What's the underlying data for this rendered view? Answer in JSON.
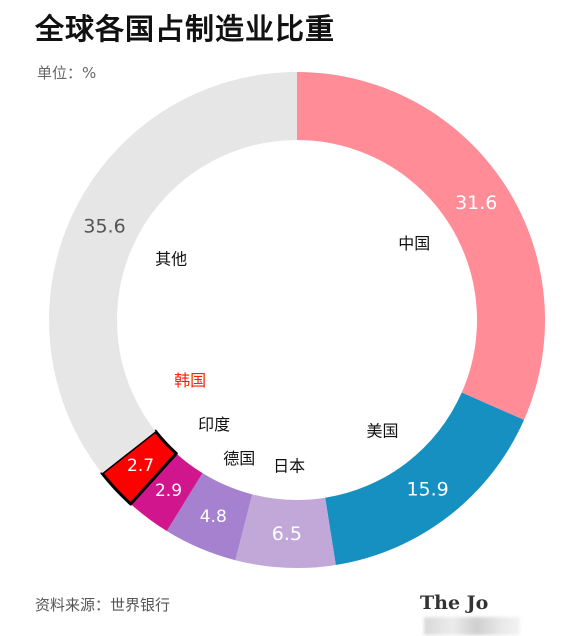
{
  "title": "全球各国占制造业比重",
  "unit_label": "单位：%",
  "source_label": "资料来源：世界银行",
  "logo_text": "The Jo",
  "chart_data": {
    "type": "pie",
    "style": "donut",
    "slices": [
      {
        "label": "中国",
        "value": 31.6,
        "color": "#ff8c96"
      },
      {
        "label": "美国",
        "value": 15.9,
        "color": "#1590c0"
      },
      {
        "label": "日本",
        "value": 6.5,
        "color": "#c2a8d8"
      },
      {
        "label": "德国",
        "value": 4.8,
        "color": "#a681d0"
      },
      {
        "label": "印度",
        "value": 2.9,
        "color": "#d1158d"
      },
      {
        "label": "韩国",
        "value": 2.7,
        "color": "#ff0000",
        "highlight": true,
        "label_color": "#ff2200"
      },
      {
        "label": "其他",
        "value": 35.6,
        "color": "#e6e6e6"
      }
    ],
    "legend": "none"
  }
}
